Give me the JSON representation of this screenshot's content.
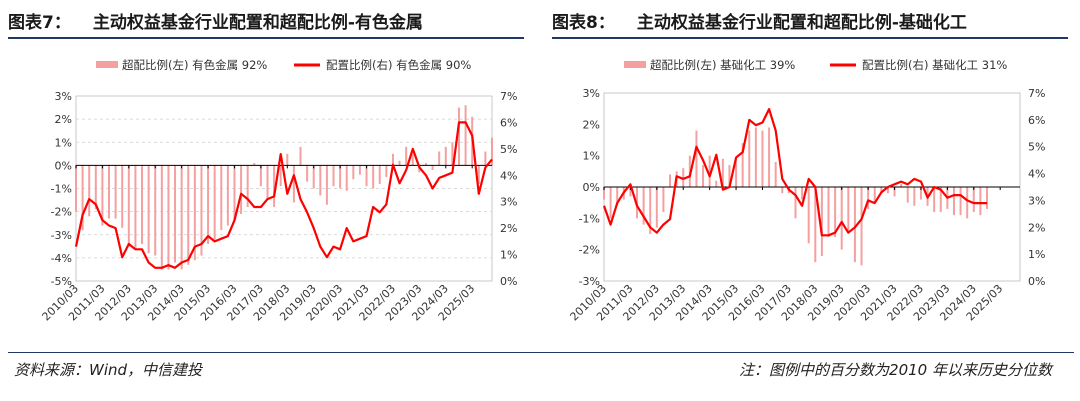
{
  "source_note": "资料来源：Wind，中信建投",
  "legend_note": "注：图例中的百分数为2010 年以来历史分位数",
  "colors": {
    "bar": "#f4a0a0",
    "line": "#ff0000",
    "zero_line": "#000000",
    "rule": "#1f3864"
  },
  "figures": [
    {
      "label": "图表7：",
      "title": "主动权益基金行业配置和超配比例-有色金属",
      "chart_data": {
        "type": "bar+line",
        "legend": [
          {
            "name": "超配比例(左) 有色金属 92%",
            "kind": "bar"
          },
          {
            "name": "配置比例(右) 有色金属 90%",
            "kind": "line"
          }
        ],
        "x_tick_labels": [
          "2010/03",
          "2011/03",
          "2012/03",
          "2013/03",
          "2014/03",
          "2015/03",
          "2016/03",
          "2017/03",
          "2018/03",
          "2019/03",
          "2020/03",
          "2021/03",
          "2022/03",
          "2023/03",
          "2024/03",
          "2025/03"
        ],
        "y_left": {
          "ticks": [
            "-5%",
            "-4%",
            "-3%",
            "-2%",
            "-1%",
            "0%",
            "1%",
            "2%",
            "3%"
          ],
          "min": -5,
          "max": 3
        },
        "y_right": {
          "ticks": [
            "0%",
            "1%",
            "2%",
            "3%",
            "4%",
            "5%",
            "6%",
            "7%"
          ],
          "min": 0,
          "max": 7
        },
        "gridlines": "dashed at left-axis ticks",
        "series": [
          {
            "name": "超配比例(左)",
            "type": "bar",
            "x_start": 2010.0,
            "x_step": 0.25,
            "values": [
              -2.0,
              -2.8,
              -2.2,
              -1.9,
              -2.6,
              -2.3,
              -2.3,
              -2.7,
              -3.5,
              -3.6,
              -3.4,
              -3.8,
              -3.9,
              -4.5,
              -4.5,
              -4.2,
              -4.5,
              -4.3,
              -4.1,
              -3.9,
              -3.4,
              -3.2,
              -2.8,
              -2.6,
              -2.4,
              -2.1,
              -1.8,
              0.1,
              -0.9,
              -1.5,
              -1.8,
              -0.9,
              0.5,
              -1.6,
              0.8,
              -0.7,
              -1.0,
              -1.3,
              -1.7,
              -0.9,
              -1.0,
              -1.1,
              -0.6,
              -0.4,
              -0.9,
              -1.0,
              -0.8,
              -0.5,
              0.5,
              0.2,
              0.8,
              0.5,
              -0.3,
              0.1,
              -0.2,
              0.6,
              0.8,
              1.0,
              2.5,
              2.6,
              2.1,
              -0.8,
              0.6,
              1.2
            ]
          },
          {
            "name": "配置比例(右)",
            "type": "line",
            "x_start": 2010.0,
            "x_step": 0.25,
            "values": [
              1.3,
              2.5,
              3.1,
              2.9,
              2.3,
              2.1,
              2.0,
              0.9,
              1.4,
              1.2,
              1.2,
              0.7,
              0.5,
              0.5,
              0.6,
              0.5,
              0.7,
              0.8,
              1.3,
              1.4,
              1.7,
              1.5,
              1.6,
              1.7,
              2.3,
              3.3,
              3.1,
              2.8,
              2.8,
              3.1,
              3.2,
              4.8,
              3.3,
              4.0,
              3.1,
              2.6,
              2.0,
              1.3,
              0.9,
              1.3,
              1.2,
              2.0,
              1.5,
              1.6,
              1.7,
              2.8,
              2.6,
              2.9,
              4.4,
              3.7,
              4.2,
              5.0,
              4.3,
              4.0,
              3.5,
              3.9,
              4.0,
              4.1,
              6.0,
              6.0,
              5.5,
              3.3,
              4.3,
              4.6
            ]
          }
        ]
      }
    },
    {
      "label": "图表8：",
      "title": "主动权益基金行业配置和超配比例-基础化工",
      "chart_data": {
        "type": "bar+line",
        "legend": [
          {
            "name": "超配比例(左) 基础化工 39%",
            "kind": "bar"
          },
          {
            "name": "配置比例(右) 基础化工 31%",
            "kind": "line"
          }
        ],
        "x_tick_labels": [
          "2010/03",
          "2011/03",
          "2012/03",
          "2013/03",
          "2014/03",
          "2015/03",
          "2016/03",
          "2017/03",
          "2018/03",
          "2019/03",
          "2020/03",
          "2021/03",
          "2022/03",
          "2023/03",
          "2024/03",
          "2025/03"
        ],
        "y_left": {
          "ticks": [
            "-3%",
            "-2%",
            "-1%",
            "0%",
            "1%",
            "2%",
            "3%"
          ],
          "min": -3,
          "max": 3
        },
        "y_right": {
          "ticks": [
            "0%",
            "1%",
            "2%",
            "3%",
            "4%",
            "5%",
            "6%",
            "7%"
          ],
          "min": 0,
          "max": 7
        },
        "gridlines": "none",
        "series": [
          {
            "name": "超配比例(左)",
            "type": "bar",
            "x_start": 2010.0,
            "x_step": 0.25,
            "values": [
              -0.4,
              -1.0,
              -0.6,
              -0.4,
              -0.3,
              -1.0,
              -1.2,
              -1.5,
              -1.3,
              -0.8,
              0.4,
              0.5,
              0.6,
              1.0,
              1.8,
              0.7,
              1.0,
              0.2,
              0.9,
              0.7,
              0.9,
              1.4,
              1.8,
              1.9,
              1.8,
              1.9,
              0.8,
              -0.2,
              -0.2,
              -1.0,
              -0.4,
              -1.8,
              -2.4,
              -2.2,
              -1.6,
              -1.6,
              -2.0,
              -1.4,
              -2.4,
              -2.5,
              -0.7,
              -0.5,
              -0.2,
              -0.2,
              -0.3,
              0.1,
              -0.5,
              -0.6,
              -0.4,
              -0.6,
              -0.8,
              -0.8,
              -0.7,
              -0.9,
              -0.9,
              -1.0,
              -0.8,
              -0.9,
              -0.7
            ]
          },
          {
            "name": "配置比例(右)",
            "type": "line",
            "x_start": 2010.0,
            "x_step": 0.25,
            "values": [
              2.8,
              2.1,
              2.9,
              3.3,
              3.6,
              2.8,
              2.4,
              2.0,
              1.8,
              2.1,
              2.3,
              3.9,
              3.8,
              3.9,
              5.0,
              4.5,
              3.9,
              4.7,
              3.4,
              3.5,
              4.6,
              4.8,
              6.0,
              5.8,
              5.9,
              6.4,
              5.6,
              3.8,
              3.4,
              3.2,
              2.8,
              3.8,
              3.5,
              1.7,
              1.7,
              1.8,
              2.2,
              1.8,
              2.0,
              2.3,
              3.0,
              2.9,
              3.3,
              3.5,
              3.6,
              3.7,
              3.6,
              3.8,
              3.7,
              3.1,
              3.5,
              3.4,
              3.1,
              3.2,
              3.2,
              3.0,
              2.9,
              2.9,
              2.9
            ]
          }
        ]
      }
    }
  ]
}
